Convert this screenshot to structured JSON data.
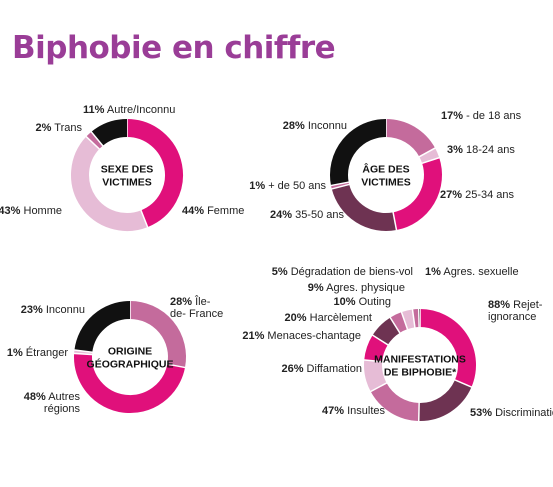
{
  "title": "Biphobie en chiffre",
  "colors": {
    "title": "#9a3d97",
    "magenta": "#e0107b",
    "black": "#111111",
    "light_pink": "#e6bcd6",
    "pink_mid": "#c46b9c",
    "dark_plum": "#6e3352"
  },
  "chart_data": [
    {
      "type": "pie",
      "title": "SEXE DES VICTIMES",
      "title_lines": [
        "SEXE DES",
        "VICTIMES"
      ],
      "slices": [
        {
          "pct": "44%",
          "value": 44,
          "lines": [
            "Femme"
          ],
          "color": "#e0107b"
        },
        {
          "pct": "43%",
          "value": 43,
          "lines": [
            "Homme"
          ],
          "color": "#e6bcd6"
        },
        {
          "pct": "2%",
          "value": 2,
          "lines": [
            "Trans"
          ],
          "color": "#c46b9c"
        },
        {
          "pct": "11%",
          "value": 11,
          "lines": [
            "Autre/Inconnu"
          ],
          "color": "#111111"
        }
      ]
    },
    {
      "type": "pie",
      "title": "ÂGE DES VICTIMES",
      "title_lines": [
        "ÂGE DES",
        "VICTIMES"
      ],
      "slices": [
        {
          "pct": "17%",
          "value": 17,
          "lines": [
            "- de 18 ans"
          ],
          "color": "#c46b9c"
        },
        {
          "pct": "3%",
          "value": 3,
          "lines": [
            "18-24 ans"
          ],
          "color": "#e6bcd6"
        },
        {
          "pct": "27%",
          "value": 27,
          "lines": [
            "25-34 ans"
          ],
          "color": "#e0107b"
        },
        {
          "pct": "24%",
          "value": 24,
          "lines": [
            "35-50 ans"
          ],
          "color": "#6e3352"
        },
        {
          "pct": "1%",
          "value": 1,
          "lines": [
            "+ de 50 ans"
          ],
          "color": "#c46b9c"
        },
        {
          "pct": "28%",
          "value": 28,
          "lines": [
            "Inconnu"
          ],
          "color": "#111111"
        }
      ]
    },
    {
      "type": "pie",
      "title": "ORIGINE GÉOGRAPHIQUE",
      "title_lines": [
        "ORIGINE",
        "GÉOGRAPHIQUE"
      ],
      "slices": [
        {
          "pct": "28%",
          "value": 28,
          "lines": [
            "Île-",
            "de- France"
          ],
          "color": "#c46b9c"
        },
        {
          "pct": "48%",
          "value": 48,
          "lines": [
            "Autres",
            "régions"
          ],
          "color": "#e0107b"
        },
        {
          "pct": "1%",
          "value": 1,
          "lines": [
            "Étranger"
          ],
          "color": "#e6bcd6"
        },
        {
          "pct": "23%",
          "value": 23,
          "lines": [
            "Inconnu"
          ],
          "color": "#111111"
        }
      ]
    },
    {
      "type": "pie",
      "title": "MANIFESTATIONS DE BIPHOBIE*",
      "title_lines": [
        "MANIFESTATIONS",
        "DE BIPHOBIE*"
      ],
      "slices": [
        {
          "pct": "88%",
          "value": 88,
          "lines": [
            "Rejet-",
            "ignorance"
          ],
          "color": "#e0107b"
        },
        {
          "pct": "53%",
          "value": 53,
          "lines": [
            "Discrimination"
          ],
          "color": "#6e3352"
        },
        {
          "pct": "47%",
          "value": 47,
          "lines": [
            "Insultes"
          ],
          "color": "#c46b9c"
        },
        {
          "pct": "26%",
          "value": 26,
          "lines": [
            "Diffamation"
          ],
          "color": "#e6bcd6"
        },
        {
          "pct": "21%",
          "value": 21,
          "lines": [
            "Menaces-chantage"
          ],
          "color": "#e0107b"
        },
        {
          "pct": "20%",
          "value": 20,
          "lines": [
            "Harcèlement"
          ],
          "color": "#6e3352"
        },
        {
          "pct": "10%",
          "value": 10,
          "lines": [
            "Outing"
          ],
          "color": "#c46b9c"
        },
        {
          "pct": "9%",
          "value": 9,
          "lines": [
            "Agres. physique"
          ],
          "color": "#e6bcd6"
        },
        {
          "pct": "5%",
          "value": 5,
          "lines": [
            "Dégradation de biens-vol"
          ],
          "color": "#c46b9c"
        },
        {
          "pct": "1%",
          "value": 1,
          "lines": [
            "Agres. sexuelle"
          ],
          "color": "#111111"
        }
      ]
    }
  ]
}
